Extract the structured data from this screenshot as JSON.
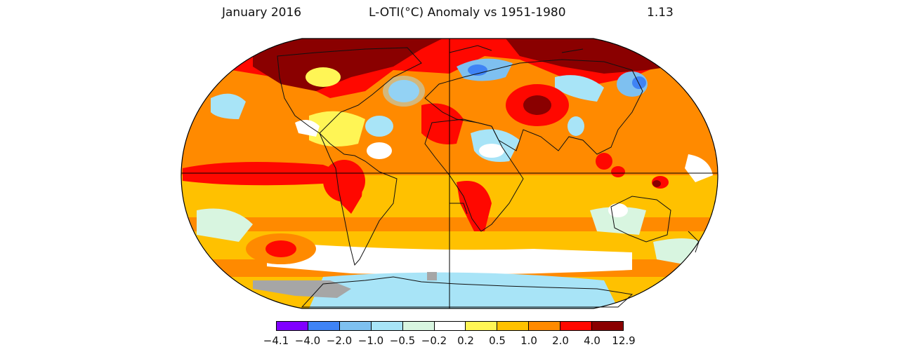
{
  "header": {
    "date": "January 2016",
    "title": "L-OTI(°C) Anomaly vs 1951-1980",
    "global_value": "1.13"
  },
  "legend": {
    "colors": [
      "#8000ff",
      "#3f83f5",
      "#7ec0f0",
      "#a8e4f7",
      "#d8f5e0",
      "#ffffff",
      "#fff555",
      "#ffc100",
      "#ff8a00",
      "#ff0800",
      "#8a0000"
    ],
    "ticks": [
      "−4.1",
      "−4.0",
      "−2.0",
      "−1.0",
      "−0.5",
      "−0.2",
      "0.2",
      "0.5",
      "1.0",
      "2.0",
      "4.0",
      "12.9"
    ]
  },
  "map": {
    "projection": "robinson",
    "gridlines": "equator and prime meridian",
    "missing_data_color": "#a6a6a6",
    "palette": {
      "darkred": "#8a0000",
      "red": "#ff0800",
      "orange": "#ff8a00",
      "amber": "#ffc100",
      "yellow": "#fff555",
      "white": "#ffffff",
      "pale": "#d8f5e0",
      "lightblue": "#a8e4f7",
      "blue": "#7ec0f0",
      "midblue": "#3f83f5",
      "gray": "#a6a6a6"
    }
  }
}
